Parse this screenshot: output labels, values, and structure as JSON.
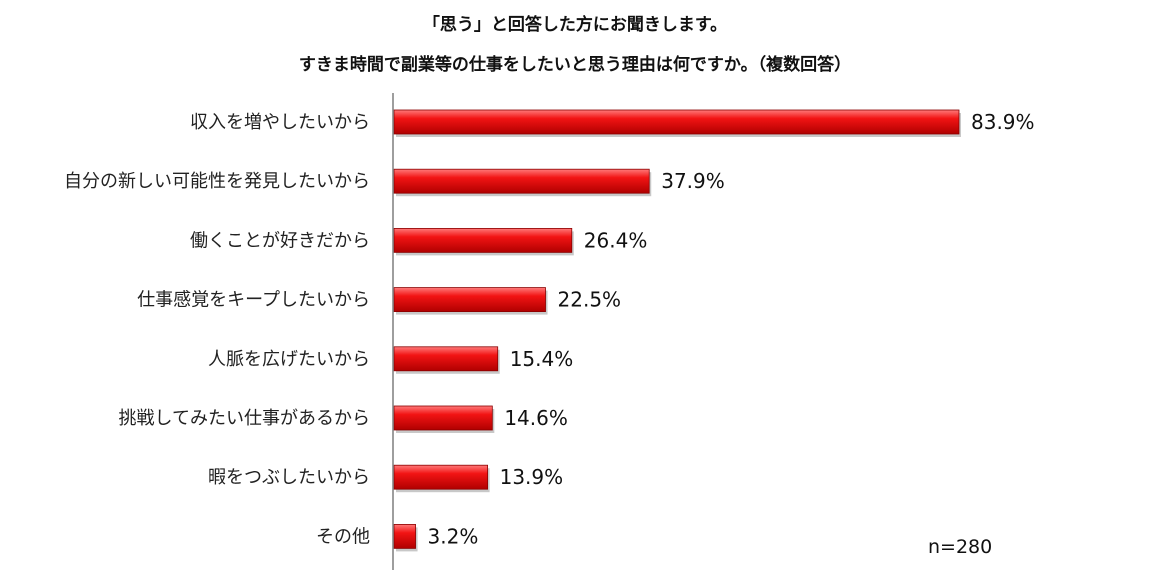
{
  "title_line1": "「思う」と回答した方にお聞きします。",
  "title_line2": "すきま時間で副業等の仕事をしたいと思う理由は何ですか。（複数回答）",
  "sample_note": "n=280",
  "colors": {
    "bar": "#e10f0f",
    "bar_light": "#ff6a6a",
    "bar_dark": "#8a0000",
    "axis": "#7f7f7f"
  },
  "chart_data": {
    "type": "bar",
    "orientation": "horizontal",
    "categories": [
      "収入を増やしたいから",
      "自分の新しい可能性を発見したいから",
      "働くことが好きだから",
      "仕事感覚をキープしたいから",
      "人脈を広げたいから",
      "挑戦してみたい仕事があるから",
      "暇をつぶしたいから",
      "その他"
    ],
    "values": [
      83.9,
      37.9,
      26.4,
      22.5,
      15.4,
      14.6,
      13.9,
      3.2
    ],
    "value_labels": [
      "83.9%",
      "37.9%",
      "26.4%",
      "22.5%",
      "15.4%",
      "14.6%",
      "13.9%",
      "3.2%"
    ],
    "unit": "%",
    "xlim": [
      0,
      100
    ],
    "grid": false,
    "legend": "none"
  }
}
